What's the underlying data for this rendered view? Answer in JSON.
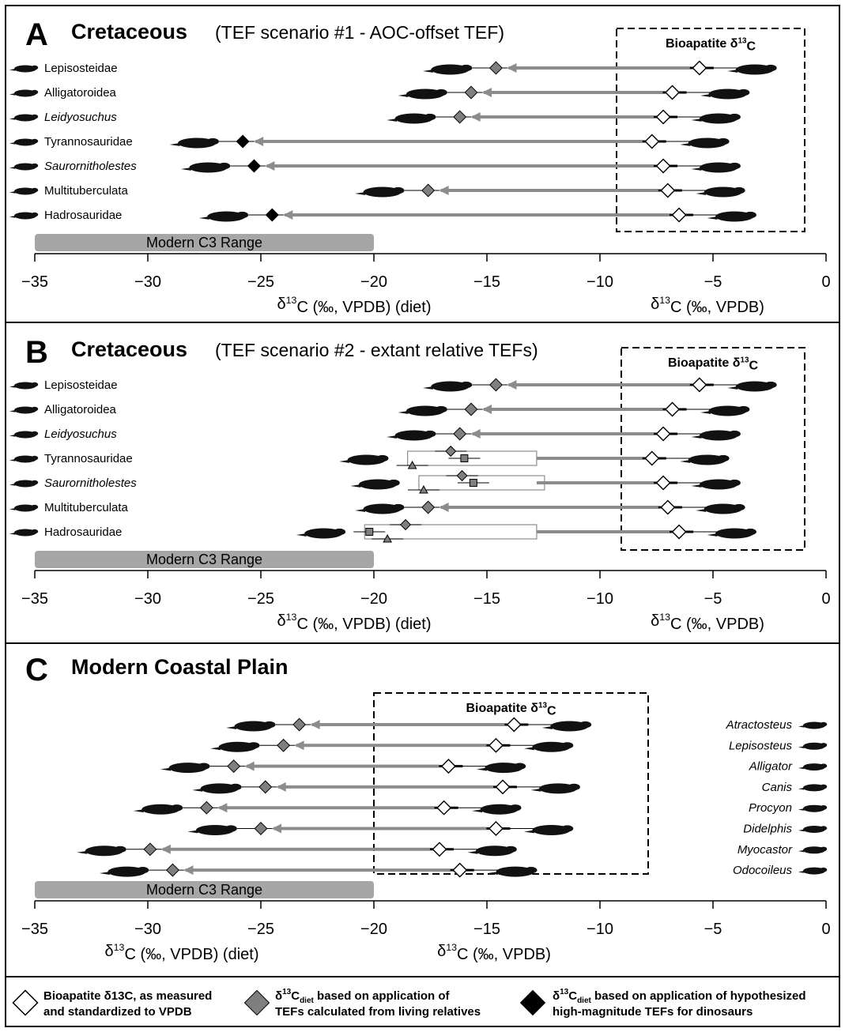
{
  "colors": {
    "tef_diamond": "#7f7f7f",
    "arrow": "#8c8c8c",
    "c3_range": "#a6a6a6",
    "silhouette": "#111111"
  },
  "panels": [
    {
      "letter": "A",
      "title": "Cretaceous",
      "subtitle": "(TEF scenario #1 - AOC-offset TEF)",
      "box_label": "Bioapatite δ13C",
      "c3_label": "Modern C3 Range",
      "xlabel_diet": "δ13C (‰, VPDB) (diet)",
      "xlabel_bio": "δ13C (‰, VPDB)",
      "taxa": [
        {
          "name": "Lepisosteidae",
          "italic": false,
          "bio": -5.6,
          "diet": -14.6,
          "diet_kind": "gray"
        },
        {
          "name": "Alligatoroidea",
          "italic": false,
          "bio": -6.8,
          "diet": -15.7,
          "diet_kind": "gray"
        },
        {
          "name": "Leidyosuchus",
          "italic": true,
          "bio": -7.2,
          "diet": -16.2,
          "diet_kind": "gray"
        },
        {
          "name": "Tyrannosauridae",
          "italic": false,
          "bio": -7.7,
          "diet": -25.8,
          "diet_kind": "black"
        },
        {
          "name": "Saurornitholestes",
          "italic": true,
          "bio": -7.2,
          "diet": -25.3,
          "diet_kind": "black"
        },
        {
          "name": "Multituberculata",
          "italic": false,
          "bio": -7.0,
          "diet": -17.6,
          "diet_kind": "gray"
        },
        {
          "name": "Hadrosauridae",
          "italic": false,
          "bio": -6.5,
          "diet": -24.5,
          "diet_kind": "black"
        }
      ]
    },
    {
      "letter": "B",
      "title": "Cretaceous",
      "subtitle": "(TEF scenario #2 - extant relative TEFs)",
      "box_label": "Bioapatite δ13C",
      "c3_label": "Modern C3 Range",
      "xlabel_diet": "δ13C (‰, VPDB) (diet)",
      "xlabel_bio": "δ13C (‰, VPDB)",
      "taxa": [
        {
          "name": "Lepisosteidae",
          "italic": false,
          "bio": -5.6,
          "diet": -14.6,
          "diet_kind": "gray"
        },
        {
          "name": "Alligatoroidea",
          "italic": false,
          "bio": -6.8,
          "diet": -15.7,
          "diet_kind": "gray"
        },
        {
          "name": "Leidyosuchus",
          "italic": true,
          "bio": -7.2,
          "diet": -16.2,
          "diet_kind": "gray"
        },
        {
          "name": "Tyrannosauridae",
          "italic": false,
          "bio": -7.7,
          "diet_multi": [
            -16.6,
            -16.0,
            -18.3
          ]
        },
        {
          "name": "Saurornitholestes",
          "italic": true,
          "bio": -7.2,
          "diet_multi": [
            -16.1,
            -15.6,
            -17.8
          ]
        },
        {
          "name": "Multituberculata",
          "italic": false,
          "bio": -7.0,
          "diet": -17.6,
          "diet_kind": "gray"
        },
        {
          "name": "Hadrosauridae",
          "italic": false,
          "bio": -6.5,
          "diet_multi": [
            -18.6,
            -20.2,
            -19.4
          ]
        }
      ]
    },
    {
      "letter": "C",
      "title": "Modern Coastal Plain",
      "box_label": "Bioapatite δ13C",
      "c3_label": "Modern C3 Range",
      "xlabel_diet": "δ13C (‰, VPDB) (diet)",
      "xlabel_bio": "δ13C (‰, VPDB)",
      "taxa": [
        {
          "name": "Atractosteus",
          "italic": true,
          "bio": -13.8,
          "diet": -23.3
        },
        {
          "name": "Lepisosteus",
          "italic": true,
          "bio": -14.6,
          "diet": -24.0
        },
        {
          "name": "Alligator",
          "italic": true,
          "bio": -16.7,
          "diet": -26.2
        },
        {
          "name": "Canis",
          "italic": true,
          "bio": -14.3,
          "diet": -24.8
        },
        {
          "name": "Procyon",
          "italic": true,
          "bio": -16.9,
          "diet": -27.4
        },
        {
          "name": "Didelphis",
          "italic": true,
          "bio": -14.6,
          "diet": -25.0
        },
        {
          "name": "Myocastor",
          "italic": true,
          "bio": -17.1,
          "diet": -29.9
        },
        {
          "name": "Odocoileus",
          "italic": true,
          "bio": -16.2,
          "diet": -28.9
        }
      ]
    }
  ],
  "axis_ticks": [
    "−35",
    "−30",
    "−25",
    "−20",
    "−15",
    "−10",
    "−5",
    "0"
  ],
  "chart_data": {
    "type": "scatter",
    "xlim": [
      -35,
      0
    ],
    "series": [
      {
        "name": "Bioapatite δ13C, as measured and standardized to VPDB"
      },
      {
        "name": "δ13Cdiet based on application of TEFs calculated from living relatives"
      },
      {
        "name": "δ13Cdiet based on application of hypothesized high-magnitude TEFs for dinosaurs"
      }
    ],
    "c3_range": [
      -35,
      -20
    ]
  },
  "legend": [
    {
      "line1": "Bioapatite δ13C, as measured",
      "line2": "and standardized to VPDB"
    },
    {
      "line1": "δ13Cdiet based on application of",
      "line2": "TEFs calculated from living relatives"
    },
    {
      "line1": "δ13Cdiet based on application of hypothesized",
      "line2": "high-magnitude TEFs for dinosaurs"
    }
  ]
}
